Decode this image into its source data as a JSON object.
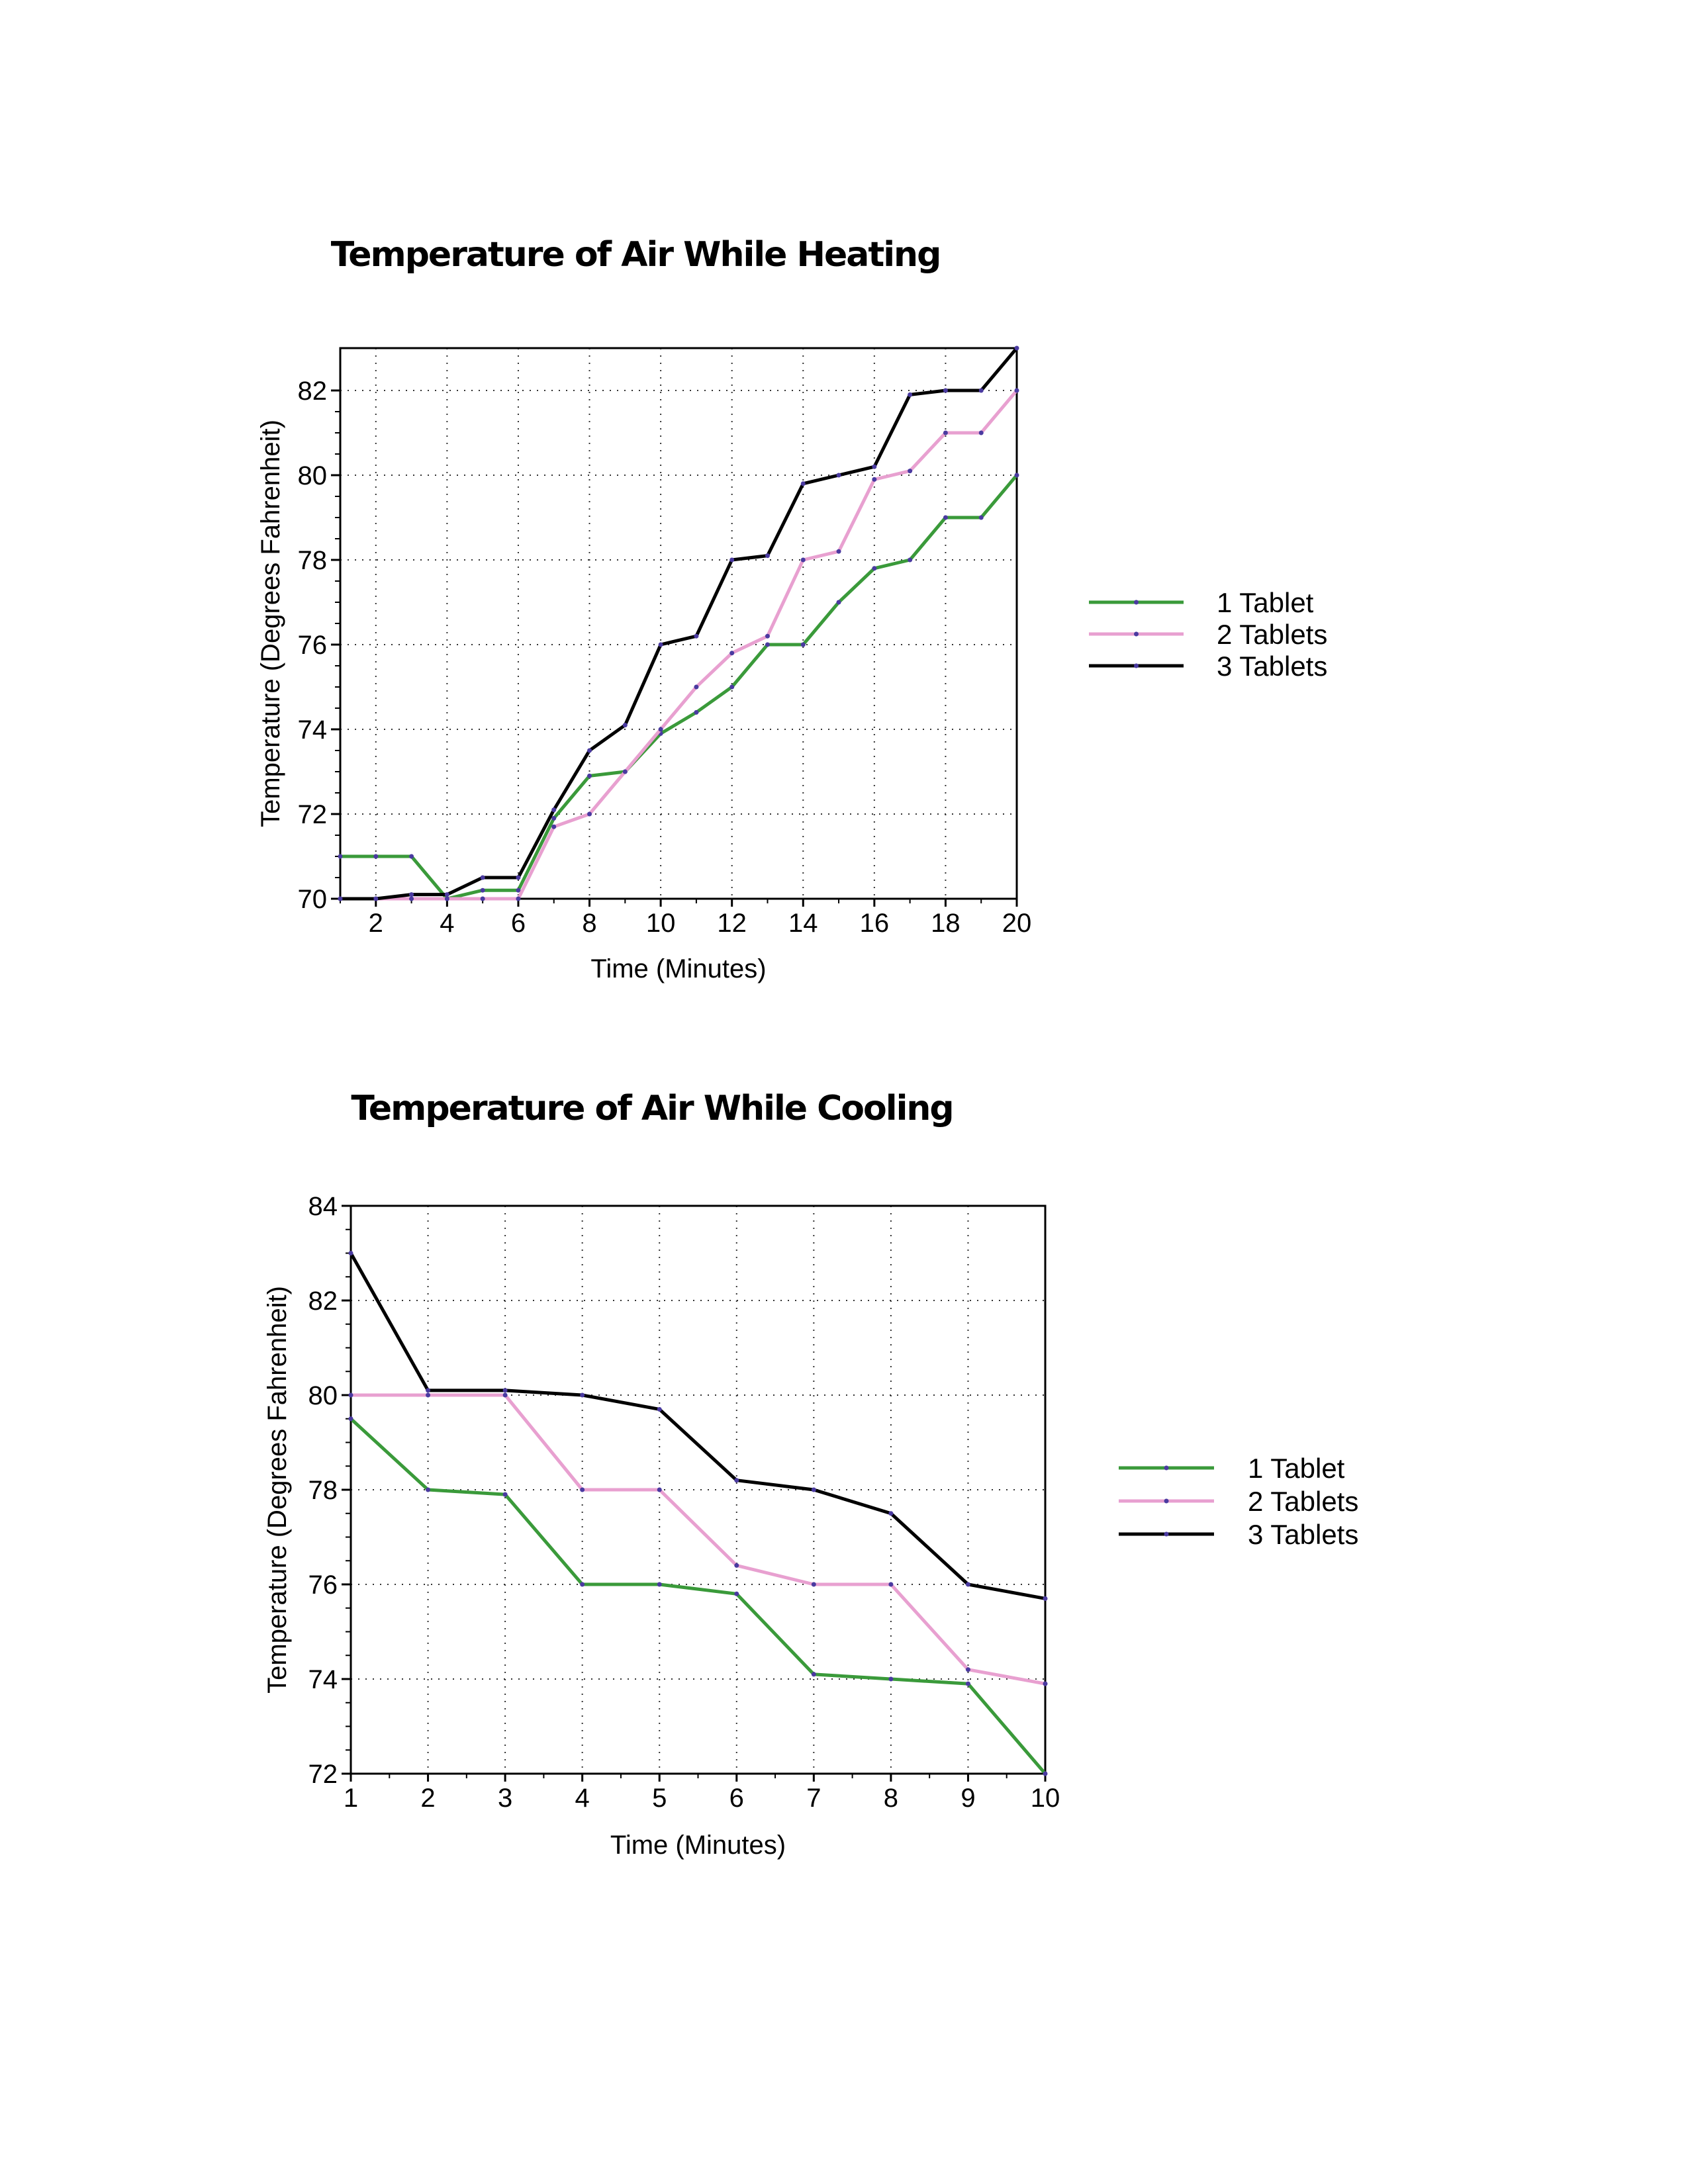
{
  "chart_data": [
    {
      "type": "line",
      "title": "Temperature of Air While Heating",
      "xlabel": "Time (Minutes)",
      "ylabel": "Temperature (Degrees Fahrenheit)",
      "x": [
        1,
        2,
        3,
        4,
        5,
        6,
        7,
        8,
        9,
        10,
        11,
        12,
        13,
        14,
        15,
        16,
        17,
        18,
        19,
        20
      ],
      "xlim": [
        1,
        20
      ],
      "ylim": [
        70,
        83
      ],
      "xticks": [
        2,
        4,
        6,
        8,
        10,
        12,
        14,
        16,
        18,
        20
      ],
      "yticks": [
        70,
        72,
        74,
        76,
        78,
        80,
        82
      ],
      "grid": true,
      "legend_position": "right",
      "series": [
        {
          "name": "1 Tablet",
          "color": "#3a9a3a",
          "values": [
            71,
            71,
            71,
            70,
            70.2,
            70.2,
            71.9,
            72.9,
            73,
            73.9,
            74.4,
            75,
            76,
            76,
            77,
            77.8,
            78,
            79,
            79,
            80
          ]
        },
        {
          "name": "2 Tablets",
          "color": "#e8a0d0",
          "values": [
            70,
            70,
            70,
            70,
            70,
            70,
            71.7,
            72,
            73,
            74,
            75,
            75.8,
            76.2,
            78,
            78.2,
            79.9,
            80.1,
            81,
            81,
            82
          ]
        },
        {
          "name": "3 Tablets",
          "color": "#000000",
          "values": [
            70,
            70,
            70.1,
            70.1,
            70.5,
            70.5,
            72.1,
            73.5,
            74.1,
            76,
            76.2,
            78,
            78.1,
            79.8,
            80,
            80.2,
            81.9,
            82,
            82,
            83
          ]
        }
      ]
    },
    {
      "type": "line",
      "title": "Temperature of Air While Cooling",
      "xlabel": "Time (Minutes)",
      "ylabel": "Temperature (Degrees Fahrenheit)",
      "x": [
        1,
        2,
        3,
        4,
        5,
        6,
        7,
        8,
        9,
        10
      ],
      "xlim": [
        1,
        10
      ],
      "ylim": [
        72,
        84
      ],
      "xticks": [
        1,
        2,
        3,
        4,
        5,
        6,
        7,
        8,
        9,
        10
      ],
      "yticks": [
        72,
        74,
        76,
        78,
        80,
        82,
        84
      ],
      "grid": true,
      "legend_position": "right",
      "series": [
        {
          "name": "1 Tablet",
          "color": "#3a9a3a",
          "values": [
            79.5,
            78,
            77.9,
            76,
            76,
            75.8,
            74.1,
            74,
            73.9,
            72
          ]
        },
        {
          "name": "2 Tablets",
          "color": "#e8a0d0",
          "values": [
            80,
            80,
            80,
            78,
            78,
            76.4,
            76,
            76,
            74.2,
            73.9
          ]
        },
        {
          "name": "3 Tablets",
          "color": "#000000",
          "values": [
            83,
            80.1,
            80.1,
            80,
            79.7,
            78.2,
            78,
            77.5,
            76,
            75.7
          ]
        }
      ]
    }
  ]
}
